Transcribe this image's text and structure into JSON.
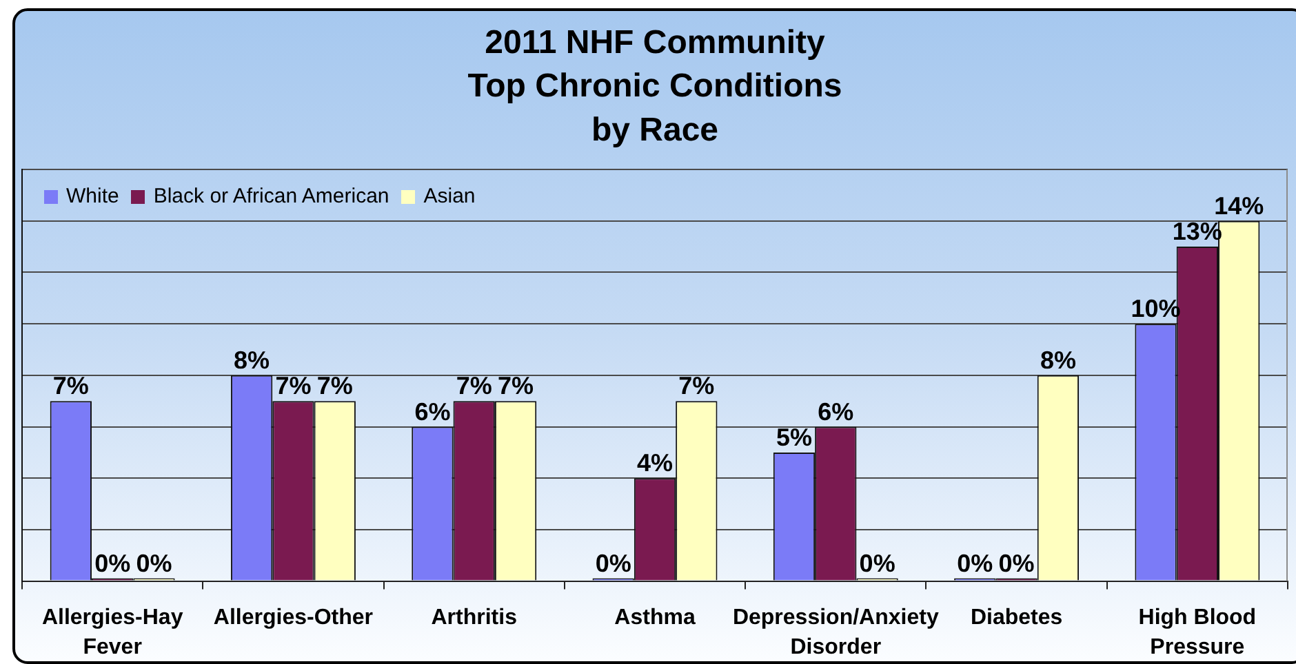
{
  "chart_data": {
    "type": "bar",
    "title": "2011 NHF Community\nTop Chronic Conditions\nby Race",
    "categories": [
      "Allergies-Hay Fever",
      "Allergies-Other",
      "Arthritis",
      "Asthma",
      "Depression/Anxiety Disorder",
      "Diabetes",
      "High Blood Pressure"
    ],
    "series": [
      {
        "name": "White",
        "color": "#7b7bf7",
        "values": [
          7,
          8,
          6,
          0,
          5,
          0,
          10
        ],
        "value_labels": [
          "7%",
          "8%",
          "6%",
          "0%",
          "5%",
          "0%",
          "10%"
        ]
      },
      {
        "name": "Black or African American",
        "color": "#7a1a50",
        "values": [
          0,
          7,
          7,
          4,
          6,
          0,
          13
        ],
        "value_labels": [
          "0%",
          "7%",
          "7%",
          "4%",
          "6%",
          "0%",
          "13%"
        ]
      },
      {
        "name": "Asian",
        "color": "#ffffc0",
        "values": [
          0,
          7,
          7,
          7,
          0,
          8,
          14
        ],
        "value_labels": [
          "0%",
          "7%",
          "7%",
          "7%",
          "0%",
          "8%",
          "14%"
        ]
      }
    ],
    "ylim": [
      0,
      16
    ],
    "yticks": [
      {
        "value": 0,
        "label": null
      },
      {
        "value": 2,
        "label": null
      },
      {
        "value": 4,
        "label": null
      },
      {
        "value": 6,
        "label": null
      },
      {
        "value": 8,
        "label": null
      },
      {
        "value": 10,
        "label": null
      },
      {
        "value": 12,
        "label": null
      },
      {
        "value": 14,
        "label": null
      },
      {
        "value": 16,
        "label": null
      }
    ],
    "grid": "y",
    "legend": "top left",
    "tick_labels": "x"
  }
}
